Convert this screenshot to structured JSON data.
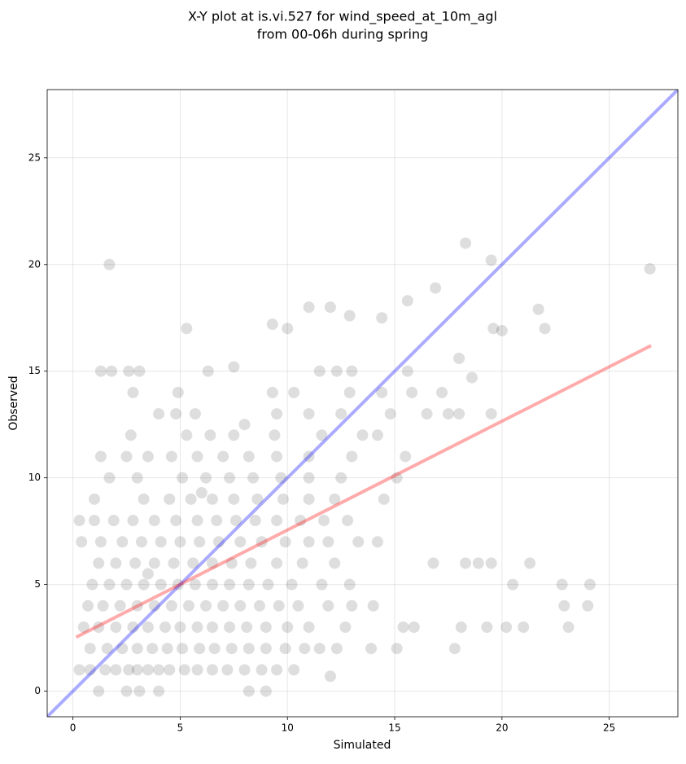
{
  "chart_data": {
    "type": "scatter",
    "title": [
      "X-Y plot at is.vi.527 for wind_speed_at_10m_agl",
      "from 00-06h during spring"
    ],
    "xlabel": "Simulated",
    "ylabel": "Observed",
    "xlim": [
      -1.2,
      28.2
    ],
    "ylim": [
      -1.2,
      28.2
    ],
    "xticks": [
      0,
      5,
      10,
      15,
      20,
      25
    ],
    "yticks": [
      0,
      5,
      10,
      15,
      20,
      25
    ],
    "grid": true,
    "color": "#000000",
    "x": [
      1.2,
      2.5,
      3.1,
      4.0,
      8.2,
      9.0,
      0.3,
      0.8,
      1.5,
      2.0,
      2.6,
      3.0,
      3.5,
      4.0,
      4.5,
      5.2,
      5.8,
      6.5,
      7.2,
      8.0,
      8.8,
      9.5,
      10.3,
      0.8,
      1.6,
      2.3,
      3.0,
      3.7,
      4.4,
      5.1,
      5.9,
      6.6,
      7.4,
      8.2,
      9.0,
      9.9,
      10.8,
      11.5,
      12.3,
      13.9,
      15.1,
      17.8,
      0.5,
      1.2,
      2.0,
      2.8,
      3.5,
      4.3,
      5.0,
      5.8,
      6.5,
      7.3,
      8.1,
      9.0,
      10.0,
      11.0,
      12.7,
      15.4,
      15.9,
      18.1,
      19.3,
      20.2,
      21.0,
      23.1,
      0.7,
      1.4,
      2.2,
      3.0,
      3.8,
      4.6,
      5.4,
      6.2,
      7.0,
      7.8,
      8.7,
      9.6,
      10.5,
      11.9,
      13.0,
      14.0,
      22.9,
      24.0,
      0.9,
      1.7,
      2.5,
      3.3,
      4.1,
      4.9,
      5.7,
      6.5,
      7.3,
      8.2,
      9.1,
      10.2,
      11.6,
      12.9,
      20.5,
      22.8,
      24.1,
      1.2,
      2.0,
      2.9,
      3.8,
      4.7,
      5.6,
      6.5,
      7.4,
      8.3,
      9.5,
      10.7,
      12.2,
      16.8,
      18.3,
      18.9,
      19.5,
      21.3,
      0.4,
      1.3,
      2.3,
      3.2,
      4.1,
      5.0,
      5.9,
      6.8,
      7.8,
      8.8,
      9.9,
      11.0,
      11.9,
      13.3,
      14.2,
      0.3,
      1.0,
      1.9,
      2.8,
      3.8,
      4.8,
      5.8,
      6.7,
      7.6,
      8.5,
      9.5,
      10.6,
      11.7,
      12.8,
      1.0,
      3.3,
      4.5,
      5.5,
      6.5,
      7.5,
      8.6,
      9.8,
      11.0,
      12.2,
      14.5,
      1.7,
      3.0,
      5.1,
      6.2,
      7.3,
      8.4,
      9.7,
      11.0,
      12.5,
      15.1,
      1.3,
      2.5,
      3.5,
      4.6,
      5.8,
      7.0,
      8.2,
      9.5,
      11.0,
      13.0,
      15.5,
      2.7,
      5.3,
      6.4,
      7.5,
      9.4,
      11.6,
      13.5,
      14.2,
      4.8,
      5.7,
      9.5,
      11.0,
      12.5,
      14.8,
      16.5,
      18.0,
      19.5,
      2.8,
      4.9,
      9.3,
      10.3,
      12.9,
      14.4,
      15.8,
      17.2,
      1.3,
      1.8,
      2.6,
      3.1,
      6.3,
      11.5,
      12.3,
      13.0,
      15.6,
      1.7,
      10.0,
      9.3,
      12.0,
      11.0,
      14.4,
      12.9,
      15.6,
      16.9,
      18.3,
      19.5,
      21.7,
      22.0,
      19.6,
      20.0,
      26.9,
      5.3,
      7.5,
      18.0,
      18.6,
      17.5,
      4.0,
      12.0,
      3.5,
      6.0,
      8.0
    ],
    "y": [
      0,
      0,
      0,
      0,
      0,
      0,
      1,
      1,
      1,
      1,
      1,
      1,
      1,
      1,
      1,
      1,
      1,
      1,
      1,
      1,
      1,
      1,
      1,
      2,
      2,
      2,
      2,
      2,
      2,
      2,
      2,
      2,
      2,
      2,
      2,
      2,
      2,
      2,
      2,
      2,
      2,
      2,
      3,
      3,
      3,
      3,
      3,
      3,
      3,
      3,
      3,
      3,
      3,
      3,
      3,
      3,
      3,
      3,
      3,
      3,
      3,
      3,
      3,
      3,
      4,
      4,
      4,
      4,
      4,
      4,
      4,
      4,
      4,
      4,
      4,
      4,
      4,
      4,
      4,
      4,
      4,
      4,
      5,
      5,
      5,
      5,
      5,
      5,
      5,
      5,
      5,
      5,
      5,
      5,
      5,
      5,
      5,
      5,
      5,
      6,
      6,
      6,
      6,
      6,
      6,
      6,
      6,
      6,
      6,
      6,
      6,
      6,
      6,
      6,
      6,
      6,
      7,
      7,
      7,
      7,
      7,
      7,
      7,
      7,
      7,
      7,
      7,
      7,
      7,
      7,
      7,
      8,
      8,
      8,
      8,
      8,
      8,
      8,
      8,
      8,
      8,
      8,
      8,
      8,
      8,
      9,
      9,
      9,
      9,
      9,
      9,
      9,
      9,
      9,
      9,
      9,
      10,
      10,
      10,
      10,
      10,
      10,
      10,
      10,
      10,
      10,
      11,
      11,
      11,
      11,
      11,
      11,
      11,
      11,
      11,
      11,
      11,
      12,
      12,
      12,
      12,
      12,
      12,
      12,
      12,
      13,
      13,
      13,
      13,
      13,
      13,
      13,
      13,
      13,
      14,
      14,
      14,
      14,
      14,
      14,
      14,
      14,
      15,
      15,
      15,
      15,
      15,
      15,
      15,
      15,
      15,
      20,
      17.0,
      17.2,
      18,
      18,
      17.5,
      17.6,
      18.3,
      18.9,
      21,
      20.2,
      17.9,
      17.0,
      17.0,
      16.9,
      19.8,
      17.0,
      15.2,
      15.6,
      14.7,
      13.0,
      13.0,
      0.7,
      5.5,
      9.3,
      12.5
    ],
    "lines": [
      {
        "color": "#0000ff",
        "x": [
          -1.2,
          28.2
        ],
        "y": [
          -1.2,
          28.2
        ]
      },
      {
        "color": "#ff0000",
        "x": [
          0.15,
          26.95
        ],
        "y": [
          2.53,
          16.2
        ]
      }
    ]
  }
}
